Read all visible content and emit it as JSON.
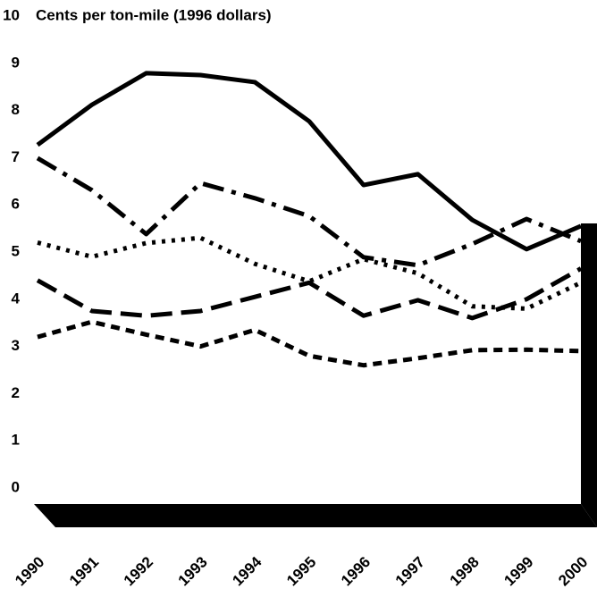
{
  "chart_data": {
    "type": "line",
    "title": "Cents per ton-mile (1996 dollars)",
    "categories": [
      "1990",
      "1991",
      "1992",
      "1993",
      "1994",
      "1995",
      "1996",
      "1997",
      "1998",
      "1999",
      "2000"
    ],
    "series": [
      {
        "color": "#000000",
        "dash": "none",
        "values": [
          7.27,
          8.12,
          8.79,
          8.75,
          8.6,
          7.77,
          6.42,
          6.65,
          5.68,
          5.06,
          5.55
        ]
      },
      {
        "color": "#000000",
        "dash": "24 9 5 9",
        "values": [
          6.99,
          6.31,
          5.38,
          6.46,
          6.14,
          5.76,
          4.89,
          4.72,
          5.17,
          5.7,
          5.23
        ]
      },
      {
        "color": "#000000",
        "dash": "4 7",
        "values": [
          5.2,
          4.9,
          5.19,
          5.3,
          4.75,
          4.38,
          4.85,
          4.55,
          3.85,
          3.8,
          4.35
        ]
      },
      {
        "color": "#000000",
        "dash": "24 10",
        "values": [
          4.4,
          3.75,
          3.65,
          3.75,
          4.05,
          4.35,
          3.65,
          3.98,
          3.6,
          4.0,
          4.65
        ]
      },
      {
        "color": "#000000",
        "dash": "10 7",
        "values": [
          3.2,
          3.52,
          3.25,
          3.0,
          3.35,
          2.8,
          2.6,
          2.75,
          2.92,
          2.93,
          2.9
        ]
      }
    ],
    "ylim": [
      0,
      10
    ],
    "yticks": [
      0,
      1,
      2,
      3,
      4,
      5,
      6,
      7,
      8,
      9,
      10
    ]
  }
}
